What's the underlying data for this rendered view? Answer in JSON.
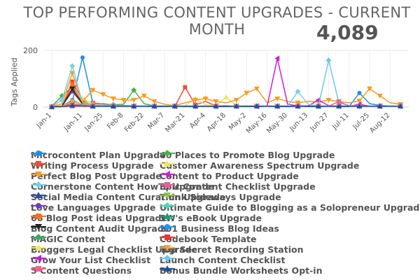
{
  "header": {
    "title_line1": "TOP PERFORMING CONTENT UPGRADES - CURRENT",
    "title_line2": "MONTH",
    "kpi_value": "4,089"
  },
  "chart_data": {
    "type": "line",
    "ylabel": "Tags Applied",
    "xlabel": "",
    "ylim": [
      0,
      200
    ],
    "yticks": [
      0,
      200
    ],
    "grid": true,
    "legend_position": "bottom",
    "tick_labels": [
      "Jan-1",
      "Jan-11",
      "Jan-25",
      "Feb-8",
      "Feb-22",
      "Mar-7",
      "Mar-21",
      "Apr-4",
      "Apr-18",
      "May-2",
      "May-16",
      "May-30",
      "Jun-13",
      "Jun-27",
      "Jul-11",
      "Jul-25",
      "Aug-12"
    ],
    "tick_positions": [
      0,
      3,
      5,
      7,
      9,
      11,
      13,
      15,
      17,
      19,
      21,
      23,
      25,
      27,
      29,
      31,
      33
    ],
    "x_count": 35,
    "series": [
      {
        "name": "Microcontent Plan Upgrade",
        "color": "#1f8fe5",
        "marker": "circle",
        "values": [
          1,
          2,
          20,
          175,
          15,
          10,
          6,
          5,
          4,
          3,
          2,
          2,
          3,
          2,
          2,
          3,
          2,
          2,
          3,
          2,
          2,
          3,
          2,
          2,
          3,
          2,
          2,
          3,
          2,
          2,
          50,
          12,
          6,
          4,
          3
        ]
      },
      {
        "name": "40 Places to Promote Blog Upgrade",
        "color": "#4caf50",
        "marker": "diamond",
        "values": [
          2,
          40,
          70,
          20,
          8,
          12,
          8,
          10,
          60,
          12,
          4,
          4,
          4,
          3,
          3,
          3,
          4,
          3,
          3,
          2,
          3,
          3,
          3,
          3,
          3,
          3,
          3,
          3,
          3,
          3,
          3,
          3,
          3,
          3,
          3
        ]
      },
      {
        "name": "Writing Process Upgrade",
        "color": "#f04e37",
        "marker": "square",
        "values": [
          1,
          3,
          90,
          25,
          15,
          10,
          5,
          6,
          3,
          4,
          3,
          3,
          3,
          70,
          8,
          20,
          4,
          5,
          3,
          4,
          4,
          3,
          3,
          3,
          3,
          4,
          3,
          3,
          3,
          3,
          3,
          3,
          3,
          3,
          3
        ]
      },
      {
        "name": "Customer Awareness Spectrum Upgrade",
        "color": "#f2e35a",
        "marker": "triangle",
        "values": [
          2,
          10,
          60,
          30,
          12,
          6,
          5,
          4,
          3,
          3,
          3,
          3,
          3,
          5,
          30,
          8,
          6,
          35,
          5,
          4,
          3,
          4,
          3,
          3,
          3,
          3,
          3,
          3,
          3,
          3,
          3,
          3,
          3,
          3,
          3
        ]
      },
      {
        "name": "Perfect Blog Post Upgrade",
        "color": "#f79c1d",
        "marker": "tri-down",
        "values": [
          2,
          12,
          120,
          20,
          60,
          45,
          30,
          25,
          25,
          40,
          20,
          10,
          5,
          15,
          25,
          30,
          20,
          15,
          25,
          50,
          65,
          15,
          30,
          20,
          15,
          20,
          18,
          25,
          20,
          15,
          22,
          65,
          40,
          15,
          10
        ]
      },
      {
        "name": "Content to Product Upgrade",
        "color": "#d21ad6",
        "marker": "tri-left",
        "values": [
          1,
          2,
          5,
          4,
          3,
          3,
          3,
          3,
          3,
          3,
          3,
          3,
          3,
          3,
          3,
          3,
          3,
          3,
          3,
          3,
          3,
          3,
          172,
          10,
          4,
          4,
          25,
          5,
          4,
          3,
          3,
          3,
          3,
          3,
          3
        ]
      },
      {
        "name": "Cornerstone Content HowTo Upgrade",
        "color": "#7ad0e8",
        "marker": "diamond",
        "values": [
          1,
          25,
          145,
          15,
          10,
          8,
          6,
          5,
          5,
          4,
          4,
          4,
          4,
          4,
          4,
          4,
          4,
          4,
          4,
          4,
          4,
          4,
          4,
          4,
          55,
          10,
          4,
          4,
          4,
          4,
          4,
          4,
          4,
          4,
          4
        ]
      },
      {
        "name": "Epic Content Checklist Upgrade",
        "color": "#e8609a",
        "marker": "square",
        "values": [
          1,
          2,
          3,
          3,
          3,
          3,
          3,
          3,
          3,
          3,
          3,
          3,
          3,
          3,
          3,
          3,
          3,
          3,
          3,
          3,
          3,
          3,
          3,
          3,
          3,
          3,
          3,
          3,
          3,
          3,
          3,
          3,
          3,
          3,
          3
        ]
      },
      {
        "name": "Social Media Content Curation Upgrade",
        "color": "#2b4f9e",
        "marker": "triangle",
        "values": [
          1,
          3,
          8,
          6,
          5,
          4,
          4,
          4,
          3,
          3,
          3,
          3,
          3,
          3,
          3,
          3,
          3,
          3,
          3,
          3,
          3,
          3,
          3,
          3,
          3,
          3,
          3,
          3,
          3,
          3,
          3,
          3,
          3,
          3,
          3
        ]
      },
      {
        "name": "Think Sideways Upgrade",
        "color": "#8bc34a",
        "marker": "tri-down",
        "values": [
          1,
          2,
          10,
          8,
          5,
          4,
          4,
          4,
          3,
          3,
          3,
          3,
          3,
          3,
          3,
          3,
          3,
          3,
          3,
          3,
          3,
          3,
          3,
          3,
          3,
          3,
          3,
          3,
          3,
          3,
          3,
          3,
          3,
          3,
          3
        ]
      },
      {
        "name": "Love Languages Upgrade",
        "color": "#6a3fbf",
        "marker": "circle",
        "values": [
          1,
          4,
          55,
          12,
          6,
          4,
          4,
          3,
          3,
          3,
          3,
          3,
          3,
          3,
          3,
          3,
          3,
          3,
          3,
          3,
          3,
          3,
          3,
          3,
          3,
          3,
          3,
          3,
          3,
          3,
          3,
          3,
          3,
          3,
          3
        ]
      },
      {
        "name": "Ultimate Guide to Blogging as a Solopreneur Upgrade",
        "color": "#48d9b6",
        "marker": "diamond",
        "values": [
          1,
          3,
          8,
          5,
          4,
          4,
          4,
          3,
          3,
          3,
          3,
          3,
          3,
          3,
          3,
          3,
          3,
          3,
          3,
          3,
          3,
          3,
          3,
          3,
          3,
          3,
          3,
          3,
          3,
          3,
          3,
          3,
          3,
          3,
          3
        ]
      },
      {
        "name": "66 Blog Post ideas Upgrade",
        "color": "#ff6d1a",
        "marker": "square",
        "values": [
          1,
          3,
          80,
          12,
          6,
          4,
          4,
          3,
          3,
          3,
          3,
          3,
          3,
          3,
          3,
          3,
          3,
          3,
          3,
          3,
          3,
          3,
          3,
          3,
          3,
          3,
          3,
          3,
          3,
          3,
          3,
          3,
          3,
          3,
          3
        ]
      },
      {
        "name": "5W's eBook Upgrade",
        "color": "#1b9e77",
        "marker": "triangle",
        "values": [
          1,
          2,
          6,
          4,
          4,
          3,
          3,
          3,
          3,
          3,
          3,
          3,
          3,
          3,
          3,
          3,
          3,
          3,
          3,
          3,
          3,
          3,
          3,
          3,
          3,
          3,
          3,
          3,
          3,
          3,
          3,
          3,
          3,
          3,
          3
        ]
      },
      {
        "name": "Blog Content Audit Upgrade",
        "color": "#222222",
        "marker": "tri-down",
        "values": [
          1,
          3,
          65,
          10,
          5,
          4,
          3,
          3,
          3,
          3,
          3,
          3,
          3,
          3,
          3,
          3,
          3,
          3,
          3,
          3,
          3,
          3,
          3,
          3,
          3,
          3,
          3,
          3,
          3,
          3,
          3,
          3,
          3,
          3,
          3
        ]
      },
      {
        "name": "201 Business Blog Ideas",
        "color": "#2196f3",
        "marker": "circle",
        "values": [
          1,
          3,
          25,
          8,
          5,
          4,
          3,
          3,
          3,
          3,
          3,
          3,
          3,
          3,
          3,
          3,
          3,
          3,
          3,
          3,
          3,
          3,
          3,
          3,
          3,
          3,
          3,
          3,
          3,
          3,
          3,
          3,
          3,
          3,
          3
        ]
      },
      {
        "name": "MAGIC Content",
        "color": "#3aa85a",
        "marker": "diamond",
        "values": [
          1,
          2,
          10,
          6,
          4,
          3,
          3,
          3,
          3,
          3,
          3,
          3,
          3,
          3,
          3,
          3,
          3,
          3,
          3,
          3,
          3,
          3,
          3,
          3,
          3,
          3,
          3,
          3,
          3,
          3,
          3,
          3,
          3,
          3,
          3
        ]
      },
      {
        "name": "Codebook Template",
        "color": "#e53935",
        "marker": "square",
        "values": [
          1,
          2,
          12,
          6,
          4,
          3,
          3,
          3,
          3,
          3,
          3,
          3,
          3,
          3,
          3,
          3,
          3,
          3,
          3,
          3,
          3,
          3,
          3,
          3,
          3,
          3,
          3,
          3,
          3,
          3,
          3,
          3,
          3,
          3,
          3
        ]
      },
      {
        "name": "Bloggers Legal Checklist Upgrade",
        "color": "#f5e663",
        "marker": "triangle",
        "values": [
          1,
          2,
          8,
          5,
          4,
          3,
          3,
          3,
          3,
          3,
          3,
          3,
          3,
          3,
          3,
          3,
          3,
          3,
          3,
          3,
          3,
          3,
          3,
          3,
          3,
          3,
          3,
          3,
          3,
          3,
          3,
          3,
          3,
          3,
          3
        ]
      },
      {
        "name": "Top Secret Recording Station",
        "color": "#f4a236",
        "marker": "tri-down",
        "values": [
          1,
          3,
          20,
          10,
          6,
          4,
          3,
          3,
          3,
          3,
          3,
          3,
          3,
          3,
          3,
          3,
          3,
          3,
          3,
          3,
          3,
          3,
          3,
          3,
          3,
          3,
          3,
          3,
          3,
          3,
          3,
          3,
          3,
          3,
          3
        ]
      },
      {
        "name": "Grow Your List Checklist",
        "color": "#c51bd0",
        "marker": "tri-left",
        "values": [
          1,
          2,
          6,
          4,
          3,
          3,
          3,
          3,
          3,
          3,
          3,
          3,
          3,
          3,
          3,
          3,
          3,
          3,
          3,
          3,
          3,
          3,
          3,
          3,
          3,
          3,
          3,
          3,
          3,
          3,
          10,
          3,
          3,
          3,
          3
        ]
      },
      {
        "name": "Launch Content Checklist",
        "color": "#6cc8ef",
        "marker": "diamond",
        "values": [
          1,
          2,
          5,
          4,
          3,
          3,
          3,
          3,
          3,
          3,
          3,
          3,
          3,
          3,
          3,
          3,
          3,
          3,
          3,
          3,
          3,
          3,
          3,
          3,
          3,
          3,
          3,
          165,
          15,
          6,
          4,
          3,
          3,
          3,
          3
        ]
      },
      {
        "name": "5 Content Questions",
        "color": "#f06292",
        "marker": "square",
        "values": [
          1,
          2,
          4,
          3,
          3,
          3,
          3,
          3,
          3,
          3,
          3,
          3,
          3,
          3,
          3,
          3,
          3,
          3,
          3,
          3,
          3,
          3,
          3,
          3,
          3,
          3,
          3,
          3,
          20,
          4,
          3,
          3,
          3,
          3,
          3
        ]
      },
      {
        "name": "Bonus Bundle Worksheets Opt-in",
        "color": "#1e4fa0",
        "marker": "triangle",
        "values": [
          1,
          2,
          6,
          4,
          3,
          3,
          3,
          3,
          3,
          3,
          3,
          3,
          3,
          3,
          3,
          3,
          3,
          3,
          3,
          3,
          3,
          3,
          3,
          3,
          3,
          3,
          3,
          3,
          3,
          3,
          3,
          3,
          3,
          3,
          3
        ]
      }
    ]
  }
}
